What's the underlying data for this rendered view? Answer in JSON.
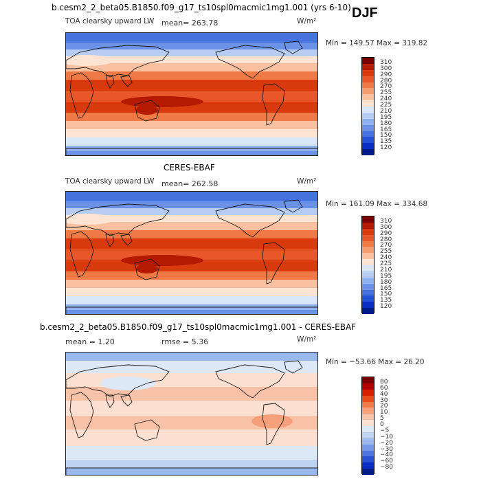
{
  "season": "DJF",
  "panels": [
    {
      "title": "b.cesm2_2_beta05.B1850.f09_g17_ts10spl0macmic1mg1.001 (yrs 6-10)",
      "variable": "TOA clearsky upward LW",
      "mean_text": "mean=  263.78",
      "units": "W/m²",
      "minmax": "Min = 149.57 Max = 319.82",
      "map_kind": "field",
      "colorbar_labels": [
        "310",
        "300",
        "290",
        "280",
        "270",
        "255",
        "240",
        "225",
        "210",
        "195",
        "180",
        "165",
        "150",
        "135",
        "120"
      ]
    },
    {
      "title": "CERES-EBAF",
      "variable": "TOA clearsky upward LW",
      "mean_text": "mean= 262.58",
      "units": "W/m²",
      "minmax": "Min = 161.09 Max = 334.68",
      "map_kind": "field",
      "colorbar_labels": [
        "310",
        "300",
        "290",
        "280",
        "270",
        "255",
        "240",
        "225",
        "210",
        "195",
        "180",
        "165",
        "150",
        "135",
        "120"
      ]
    },
    {
      "title": "b.cesm2_2_beta05.B1850.f09_g17_ts10spl0macmic1mg1.001 - CERES-EBAF",
      "mean_text": "mean =    1.20",
      "rmse_text": "rmse =    5.36",
      "units": "W/m²",
      "minmax": "Min = −53.66 Max =  26.20",
      "map_kind": "diff",
      "colorbar_labels": [
        "80",
        "60",
        "40",
        "30",
        "20",
        "10",
        "5",
        "0",
        "−5",
        "−10",
        "−20",
        "−30",
        "−40",
        "−60",
        "−80"
      ]
    }
  ],
  "colors": {
    "field_scale": [
      "#7a0000",
      "#b31a00",
      "#d93a0d",
      "#e8572a",
      "#f07a45",
      "#f59d70",
      "#f9c1a0",
      "#fde4d2",
      "#d9e6f7",
      "#b6cdf1",
      "#8fb0ec",
      "#6b92e6",
      "#4673e0",
      "#2551d6",
      "#0a2cc2",
      "#001a8a"
    ],
    "diff_scale": [
      "#7a0000",
      "#b30000",
      "#d62000",
      "#e84a1a",
      "#f07a45",
      "#f5a07a",
      "#f8c2a8",
      "#fbe0d2",
      "#dde8f7",
      "#bed3f2",
      "#9bb8ed",
      "#7698e6",
      "#4f75df",
      "#2a50d4",
      "#0a2cc2",
      "#001a8a"
    ],
    "coast": "#1a1a1a"
  }
}
